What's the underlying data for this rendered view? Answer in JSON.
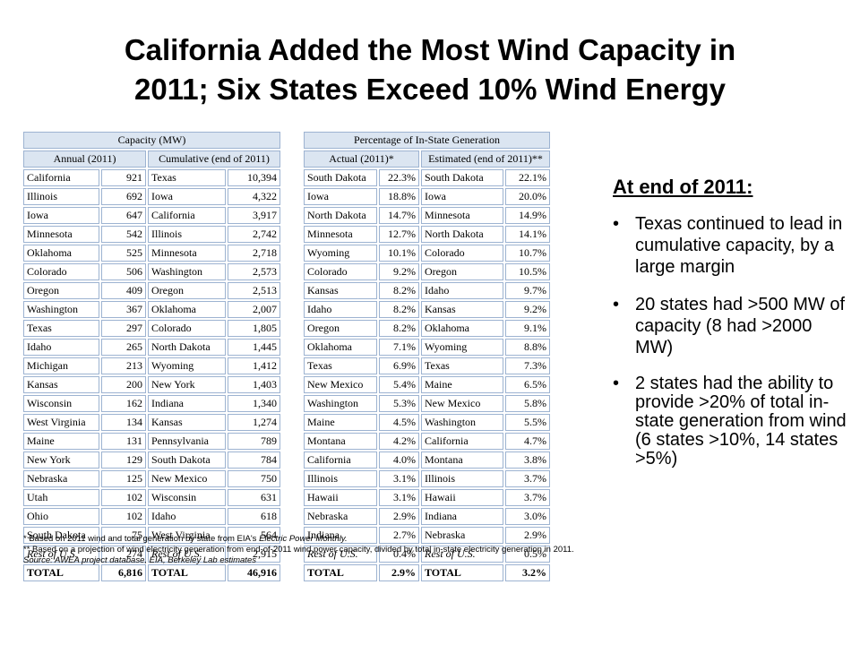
{
  "title_line1": "California Added the Most Wind Capacity in",
  "title_line2": "2011; Six States Exceed 10% Wind Energy",
  "capacity_table": {
    "header": "Capacity (MW)",
    "annual_header": "Annual (2011)",
    "cumulative_header": "Cumulative (end of 2011)",
    "annual": [
      [
        "California",
        "921"
      ],
      [
        "Illinois",
        "692"
      ],
      [
        "Iowa",
        "647"
      ],
      [
        "Minnesota",
        "542"
      ],
      [
        "Oklahoma",
        "525"
      ],
      [
        "Colorado",
        "506"
      ],
      [
        "Oregon",
        "409"
      ],
      [
        "Washington",
        "367"
      ],
      [
        "Texas",
        "297"
      ],
      [
        "Idaho",
        "265"
      ],
      [
        "Michigan",
        "213"
      ],
      [
        "Kansas",
        "200"
      ],
      [
        "Wisconsin",
        "162"
      ],
      [
        "West Virginia",
        "134"
      ],
      [
        "Maine",
        "131"
      ],
      [
        "New York",
        "129"
      ],
      [
        "Nebraska",
        "125"
      ],
      [
        "Utah",
        "102"
      ],
      [
        "Ohio",
        "102"
      ],
      [
        "South Dakota",
        "75"
      ],
      [
        "Rest of U.S.",
        "274"
      ],
      [
        "TOTAL",
        "6,816"
      ]
    ],
    "cumulative": [
      [
        "Texas",
        "10,394"
      ],
      [
        "Iowa",
        "4,322"
      ],
      [
        "California",
        "3,917"
      ],
      [
        "Illinois",
        "2,742"
      ],
      [
        "Minnesota",
        "2,718"
      ],
      [
        "Washington",
        "2,573"
      ],
      [
        "Oregon",
        "2,513"
      ],
      [
        "Oklahoma",
        "2,007"
      ],
      [
        "Colorado",
        "1,805"
      ],
      [
        "North Dakota",
        "1,445"
      ],
      [
        "Wyoming",
        "1,412"
      ],
      [
        "New York",
        "1,403"
      ],
      [
        "Indiana",
        "1,340"
      ],
      [
        "Kansas",
        "1,274"
      ],
      [
        "Pennsylvania",
        "789"
      ],
      [
        "South Dakota",
        "784"
      ],
      [
        "New Mexico",
        "750"
      ],
      [
        "Wisconsin",
        "631"
      ],
      [
        "Idaho",
        "618"
      ],
      [
        "West Virginia",
        "564"
      ],
      [
        "Rest of U.S.",
        "2,915"
      ],
      [
        "TOTAL",
        "46,916"
      ]
    ]
  },
  "percentage_table": {
    "header": "Percentage of In-State Generation",
    "actual_header": "Actual (2011)*",
    "estimated_header": "Estimated (end of 2011)**",
    "actual": [
      [
        "South Dakota",
        "22.3%"
      ],
      [
        "Iowa",
        "18.8%"
      ],
      [
        "North Dakota",
        "14.7%"
      ],
      [
        "Minnesota",
        "12.7%"
      ],
      [
        "Wyoming",
        "10.1%"
      ],
      [
        "Colorado",
        "9.2%"
      ],
      [
        "Kansas",
        "8.2%"
      ],
      [
        "Idaho",
        "8.2%"
      ],
      [
        "Oregon",
        "8.2%"
      ],
      [
        "Oklahoma",
        "7.1%"
      ],
      [
        "Texas",
        "6.9%"
      ],
      [
        "New Mexico",
        "5.4%"
      ],
      [
        "Washington",
        "5.3%"
      ],
      [
        "Maine",
        "4.5%"
      ],
      [
        "Montana",
        "4.2%"
      ],
      [
        "California",
        "4.0%"
      ],
      [
        "Illinois",
        "3.1%"
      ],
      [
        "Hawaii",
        "3.1%"
      ],
      [
        "Nebraska",
        "2.9%"
      ],
      [
        "Indiana",
        "2.7%"
      ],
      [
        "Rest of U.S.",
        "0.4%"
      ],
      [
        "TOTAL",
        "2.9%"
      ]
    ],
    "estimated": [
      [
        "South Dakota",
        "22.1%"
      ],
      [
        "Iowa",
        "20.0%"
      ],
      [
        "Minnesota",
        "14.9%"
      ],
      [
        "North Dakota",
        "14.1%"
      ],
      [
        "Colorado",
        "10.7%"
      ],
      [
        "Oregon",
        "10.5%"
      ],
      [
        "Idaho",
        "9.7%"
      ],
      [
        "Kansas",
        "9.2%"
      ],
      [
        "Oklahoma",
        "9.1%"
      ],
      [
        "Wyoming",
        "8.8%"
      ],
      [
        "Texas",
        "7.3%"
      ],
      [
        "Maine",
        "6.5%"
      ],
      [
        "New Mexico",
        "5.8%"
      ],
      [
        "Washington",
        "5.5%"
      ],
      [
        "California",
        "4.7%"
      ],
      [
        "Montana",
        "3.8%"
      ],
      [
        "Illinois",
        "3.7%"
      ],
      [
        "Hawaii",
        "3.7%"
      ],
      [
        "Indiana",
        "3.0%"
      ],
      [
        "Nebraska",
        "2.9%"
      ],
      [
        "Rest of U.S.",
        "0.5%"
      ],
      [
        "TOTAL",
        "3.2%"
      ]
    ]
  },
  "notes": {
    "note1_text": "* Based on 2011 wind and total generation by state from EIA's ",
    "note1_italic": "Electric Power Monthly.",
    "note2": "** Based on a projection of wind electricity generation from end-of-2011 wind power capacity, divided by total in-state electricity generation in 2011.",
    "source": "Source:  AWEA project database, EIA, Berkeley Lab estimates"
  },
  "summary": {
    "heading": "At end of 2011:",
    "bullets": [
      "Texas continued to lead in cumulative capacity, by a large margin",
      "20 states had >500 MW of capacity (8 had >2000 MW)",
      "2 states had the ability to provide >20% of total in-state generation from wind (6 states >10%, 14 states >5%)"
    ],
    "bullet_char": "•"
  },
  "colors": {
    "table_header_bg": "#dbe5f1",
    "table_border": "#9db3d1"
  }
}
